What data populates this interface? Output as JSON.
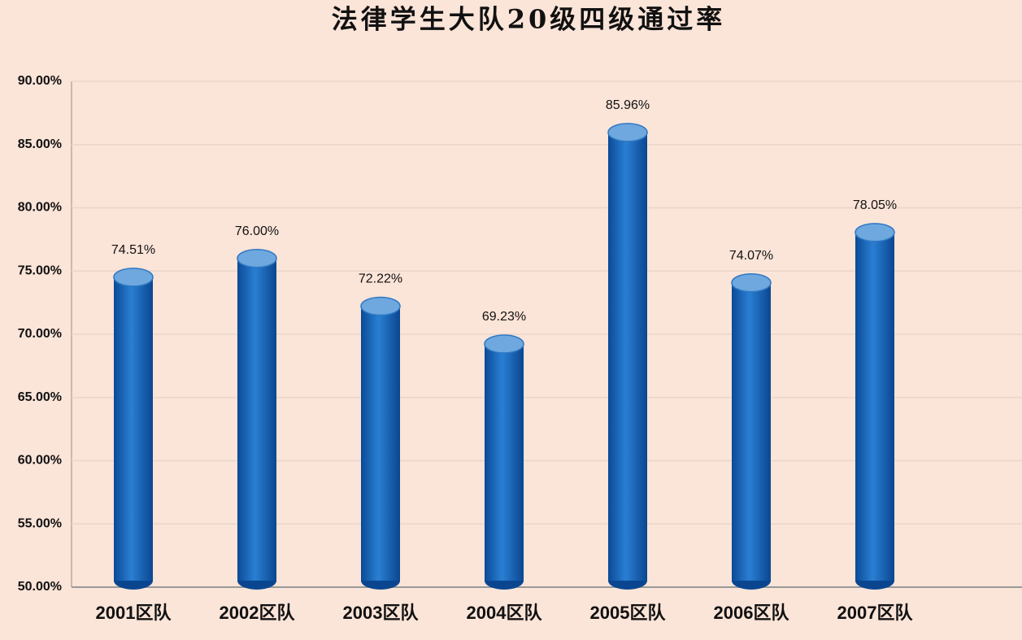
{
  "chart_data": {
    "type": "bar",
    "title": "法律学生大队20级四级通过率",
    "categories": [
      "2001区队",
      "2002区队",
      "2003区队",
      "2004区队",
      "2005区队",
      "2006区队",
      "2007区队"
    ],
    "values": [
      74.51,
      76.0,
      72.22,
      69.23,
      85.96,
      74.07,
      78.05
    ],
    "value_labels": [
      "74.51%",
      "76.00%",
      "72.22%",
      "69.23%",
      "85.96%",
      "74.07%",
      "78.05%"
    ],
    "color": "#1565c0",
    "ylim": [
      50,
      90
    ],
    "yticks": [
      {
        "value": 50,
        "label": "50.00%"
      },
      {
        "value": 55,
        "label": "55.00%"
      },
      {
        "value": 60,
        "label": "60.00%"
      },
      {
        "value": 65,
        "label": "65.00%"
      },
      {
        "value": 70,
        "label": "70.00%"
      },
      {
        "value": 75,
        "label": "75.00%"
      },
      {
        "value": 80,
        "label": "80.00%"
      },
      {
        "value": 85,
        "label": "85.00%"
      },
      {
        "value": 90,
        "label": "90.00%"
      }
    ],
    "grid": true
  }
}
